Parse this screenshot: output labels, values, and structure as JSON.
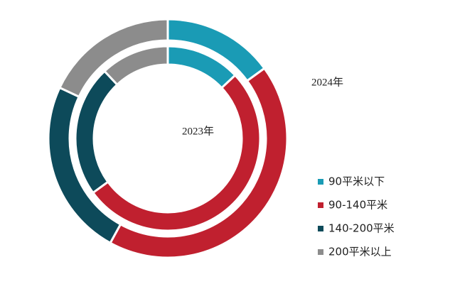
{
  "chart_data": {
    "type": "donut",
    "categories": [
      "90平米以下",
      "90-140平米",
      "140-200平米",
      "200平米以上"
    ],
    "colors": [
      "#1a9bb5",
      "#c0202f",
      "#0d4a5a",
      "#8c8c8c"
    ],
    "series": [
      {
        "name": "2024年",
        "values": [
          15,
          43,
          24,
          18
        ]
      },
      {
        "name": "2023年",
        "values": [
          13,
          52,
          23,
          12
        ]
      }
    ]
  }
}
